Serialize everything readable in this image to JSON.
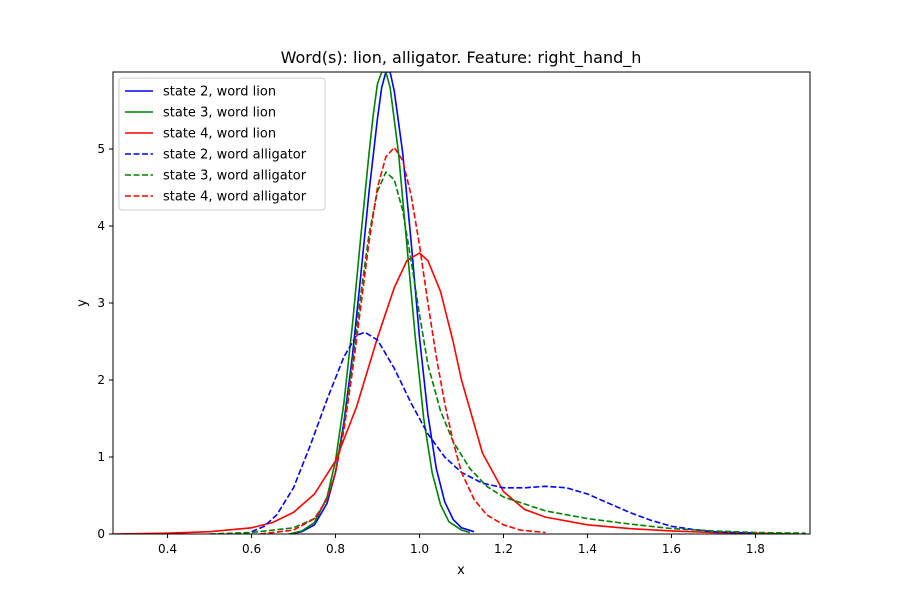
{
  "chart_data": {
    "type": "line",
    "title": "Word(s): lion, alligator. Feature: right_hand_h",
    "xlabel": "x",
    "ylabel": "y",
    "xlim": [
      0.27,
      1.93
    ],
    "ylim": [
      0,
      6.0
    ],
    "xticks": [
      0.4,
      0.6,
      0.8,
      1.0,
      1.2,
      1.4,
      1.6,
      1.8
    ],
    "yticks": [
      0,
      1,
      2,
      3,
      4,
      5
    ],
    "grid": false,
    "legend_position": "top-left",
    "series": [
      {
        "name": "state 2, word lion",
        "color": "#0000ff",
        "dash": "solid",
        "points": [
          [
            0.69,
            0.0
          ],
          [
            0.72,
            0.03
          ],
          [
            0.75,
            0.12
          ],
          [
            0.78,
            0.4
          ],
          [
            0.8,
            0.8
          ],
          [
            0.82,
            1.45
          ],
          [
            0.84,
            2.3
          ],
          [
            0.86,
            3.35
          ],
          [
            0.88,
            4.45
          ],
          [
            0.9,
            5.4
          ],
          [
            0.91,
            5.8
          ],
          [
            0.92,
            6.0
          ],
          [
            0.93,
            6.0
          ],
          [
            0.94,
            5.75
          ],
          [
            0.96,
            4.95
          ],
          [
            0.98,
            3.8
          ],
          [
            1.0,
            2.55
          ],
          [
            1.02,
            1.55
          ],
          [
            1.04,
            0.85
          ],
          [
            1.06,
            0.42
          ],
          [
            1.08,
            0.19
          ],
          [
            1.1,
            0.08
          ],
          [
            1.13,
            0.03
          ]
        ]
      },
      {
        "name": "state 3, word lion",
        "color": "#008000",
        "dash": "solid",
        "points": [
          [
            0.69,
            0.0
          ],
          [
            0.72,
            0.04
          ],
          [
            0.75,
            0.15
          ],
          [
            0.78,
            0.48
          ],
          [
            0.8,
            0.95
          ],
          [
            0.82,
            1.7
          ],
          [
            0.84,
            2.7
          ],
          [
            0.86,
            3.85
          ],
          [
            0.88,
            4.95
          ],
          [
            0.89,
            5.45
          ],
          [
            0.9,
            5.85
          ],
          [
            0.91,
            6.0
          ],
          [
            0.92,
            6.0
          ],
          [
            0.93,
            5.8
          ],
          [
            0.95,
            4.95
          ],
          [
            0.97,
            3.75
          ],
          [
            0.99,
            2.55
          ],
          [
            1.01,
            1.5
          ],
          [
            1.03,
            0.8
          ],
          [
            1.05,
            0.38
          ],
          [
            1.07,
            0.16
          ],
          [
            1.1,
            0.05
          ],
          [
            1.12,
            0.02
          ]
        ]
      },
      {
        "name": "state 4, word lion",
        "color": "#ff0000",
        "dash": "solid",
        "points": [
          [
            0.27,
            0.0
          ],
          [
            0.4,
            0.01
          ],
          [
            0.5,
            0.03
          ],
          [
            0.6,
            0.08
          ],
          [
            0.65,
            0.15
          ],
          [
            0.7,
            0.28
          ],
          [
            0.75,
            0.52
          ],
          [
            0.8,
            0.95
          ],
          [
            0.85,
            1.65
          ],
          [
            0.9,
            2.55
          ],
          [
            0.94,
            3.2
          ],
          [
            0.97,
            3.55
          ],
          [
            1.0,
            3.65
          ],
          [
            1.02,
            3.55
          ],
          [
            1.05,
            3.15
          ],
          [
            1.08,
            2.5
          ],
          [
            1.1,
            2.0
          ],
          [
            1.15,
            1.05
          ],
          [
            1.2,
            0.55
          ],
          [
            1.25,
            0.32
          ],
          [
            1.3,
            0.22
          ],
          [
            1.4,
            0.12
          ],
          [
            1.5,
            0.07
          ],
          [
            1.6,
            0.04
          ],
          [
            1.7,
            0.02
          ],
          [
            1.8,
            0.01
          ],
          [
            1.9,
            0.0
          ]
        ]
      },
      {
        "name": "state 2, word alligator",
        "color": "#0000ff",
        "dash": "dashed",
        "points": [
          [
            0.6,
            0.03
          ],
          [
            0.63,
            0.1
          ],
          [
            0.66,
            0.25
          ],
          [
            0.7,
            0.6
          ],
          [
            0.74,
            1.15
          ],
          [
            0.78,
            1.75
          ],
          [
            0.82,
            2.3
          ],
          [
            0.85,
            2.58
          ],
          [
            0.87,
            2.62
          ],
          [
            0.9,
            2.52
          ],
          [
            0.94,
            2.15
          ],
          [
            0.98,
            1.7
          ],
          [
            1.02,
            1.3
          ],
          [
            1.06,
            1.0
          ],
          [
            1.1,
            0.8
          ],
          [
            1.15,
            0.66
          ],
          [
            1.2,
            0.6
          ],
          [
            1.25,
            0.6
          ],
          [
            1.3,
            0.62
          ],
          [
            1.35,
            0.6
          ],
          [
            1.4,
            0.52
          ],
          [
            1.45,
            0.4
          ],
          [
            1.5,
            0.28
          ],
          [
            1.55,
            0.18
          ],
          [
            1.6,
            0.1
          ],
          [
            1.65,
            0.06
          ],
          [
            1.7,
            0.03
          ],
          [
            1.75,
            0.02
          ],
          [
            1.8,
            0.01
          ]
        ]
      },
      {
        "name": "state 3, word alligator",
        "color": "#008000",
        "dash": "dashed",
        "points": [
          [
            0.5,
            0.0
          ],
          [
            0.6,
            0.02
          ],
          [
            0.7,
            0.08
          ],
          [
            0.75,
            0.2
          ],
          [
            0.78,
            0.45
          ],
          [
            0.8,
            0.8
          ],
          [
            0.82,
            1.4
          ],
          [
            0.84,
            2.2
          ],
          [
            0.86,
            3.1
          ],
          [
            0.88,
            3.9
          ],
          [
            0.9,
            4.45
          ],
          [
            0.92,
            4.7
          ],
          [
            0.94,
            4.6
          ],
          [
            0.96,
            4.2
          ],
          [
            0.98,
            3.55
          ],
          [
            1.0,
            2.85
          ],
          [
            1.02,
            2.2
          ],
          [
            1.05,
            1.6
          ],
          [
            1.08,
            1.2
          ],
          [
            1.12,
            0.85
          ],
          [
            1.16,
            0.62
          ],
          [
            1.2,
            0.48
          ],
          [
            1.3,
            0.3
          ],
          [
            1.4,
            0.2
          ],
          [
            1.5,
            0.13
          ],
          [
            1.6,
            0.07
          ],
          [
            1.7,
            0.04
          ],
          [
            1.8,
            0.02
          ],
          [
            1.92,
            0.01
          ]
        ]
      },
      {
        "name": "state 4, word alligator",
        "color": "#ff0000",
        "dash": "dashed",
        "points": [
          [
            0.62,
            0.0
          ],
          [
            0.7,
            0.05
          ],
          [
            0.75,
            0.2
          ],
          [
            0.78,
            0.45
          ],
          [
            0.8,
            0.8
          ],
          [
            0.82,
            1.35
          ],
          [
            0.84,
            2.1
          ],
          [
            0.86,
            2.95
          ],
          [
            0.88,
            3.8
          ],
          [
            0.9,
            4.5
          ],
          [
            0.92,
            4.9
          ],
          [
            0.94,
            5.02
          ],
          [
            0.96,
            4.85
          ],
          [
            0.98,
            4.4
          ],
          [
            1.0,
            3.75
          ],
          [
            1.02,
            3.0
          ],
          [
            1.04,
            2.3
          ],
          [
            1.06,
            1.7
          ],
          [
            1.08,
            1.2
          ],
          [
            1.1,
            0.8
          ],
          [
            1.13,
            0.45
          ],
          [
            1.16,
            0.25
          ],
          [
            1.2,
            0.12
          ],
          [
            1.24,
            0.05
          ],
          [
            1.3,
            0.02
          ]
        ]
      }
    ]
  }
}
